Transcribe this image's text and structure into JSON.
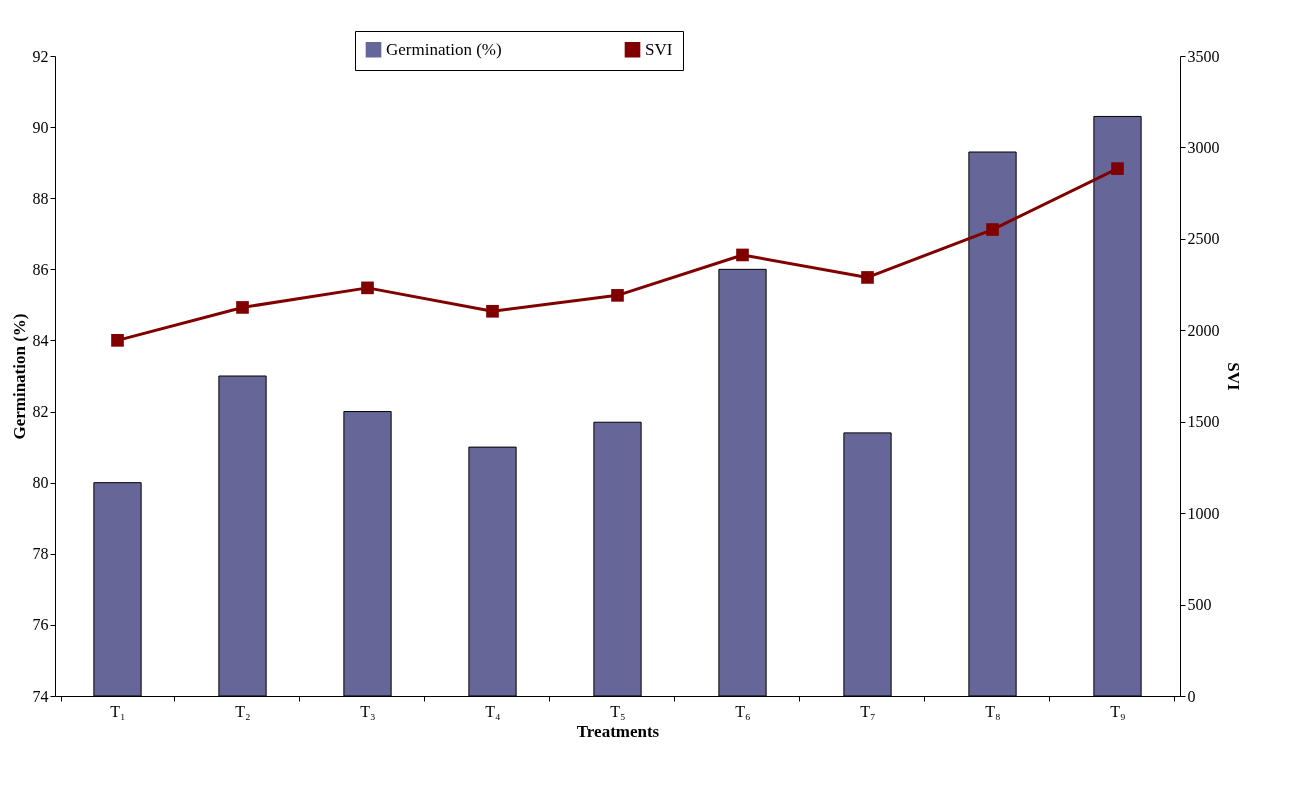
{
  "chart_data": {
    "type": "bar",
    "xlabel": "Treatments",
    "ylabel": "Germination (%)",
    "y2label": "SVI",
    "categories": [
      "T₁",
      "T₂",
      "T₃",
      "T₄",
      "T₅",
      "T₆",
      "T₇",
      "T₈",
      "T₉"
    ],
    "series": [
      {
        "name": "Germination (%)",
        "color": "#666699",
        "values": [
          80.0,
          83.0,
          82.0,
          81.0,
          81.7,
          86.0,
          81.4,
          89.3,
          90.3
        ]
      },
      {
        "name": "SVI",
        "type": "line",
        "axis": "y2",
        "color": "#800000",
        "marker": "square",
        "values": [
          1945,
          2125,
          2232,
          2104,
          2191,
          2412,
          2289,
          2551,
          2884
        ]
      }
    ],
    "ylim": [
      74,
      92
    ],
    "yticks": [
      74,
      76,
      78,
      80,
      82,
      84,
      86,
      88,
      90,
      92
    ],
    "y2lim": [
      0,
      3500
    ],
    "y2ticks": [
      0,
      500,
      1000,
      1500,
      2000,
      2500,
      3000,
      3500
    ],
    "grid": false,
    "legend": "top"
  }
}
